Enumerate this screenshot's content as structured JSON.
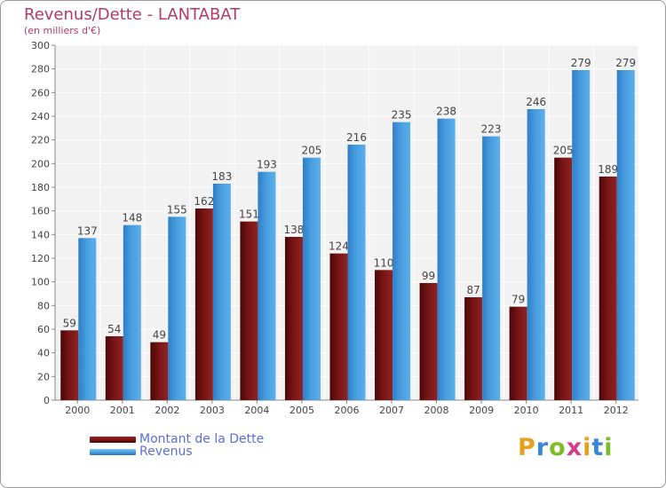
{
  "chart_data": {
    "type": "bar",
    "title": "Revenus/Dette - LANTABAT",
    "subtitle": "(en milliers d'€)",
    "categories": [
      "2000",
      "2001",
      "2002",
      "2003",
      "2004",
      "2005",
      "2006",
      "2007",
      "2008",
      "2009",
      "2010",
      "2011",
      "2012"
    ],
    "series": [
      {
        "name": "Montant de la Dette",
        "color": "#7a1515",
        "values": [
          59,
          54,
          49,
          162,
          151,
          138,
          124,
          110,
          99,
          87,
          79,
          205,
          189
        ]
      },
      {
        "name": "Revenus",
        "color": "#4a9fe0",
        "values": [
          137,
          148,
          155,
          183,
          193,
          205,
          216,
          235,
          238,
          223,
          246,
          279,
          279
        ]
      }
    ],
    "ylim": [
      0,
      300
    ],
    "yticks": [
      0,
      20,
      40,
      60,
      80,
      100,
      120,
      140,
      160,
      180,
      200,
      220,
      240,
      260,
      280,
      300
    ],
    "grid": true,
    "legend_position": "bottom-left"
  },
  "brand": {
    "letters": [
      "P",
      "r",
      "o",
      "x",
      "i",
      "t",
      "i"
    ],
    "colors": [
      "#e3a11d",
      "#3a86d4",
      "#7dbb2a",
      "#d23d8c",
      "#e3a11d",
      "#3a86d4",
      "#7dbb2a"
    ]
  }
}
